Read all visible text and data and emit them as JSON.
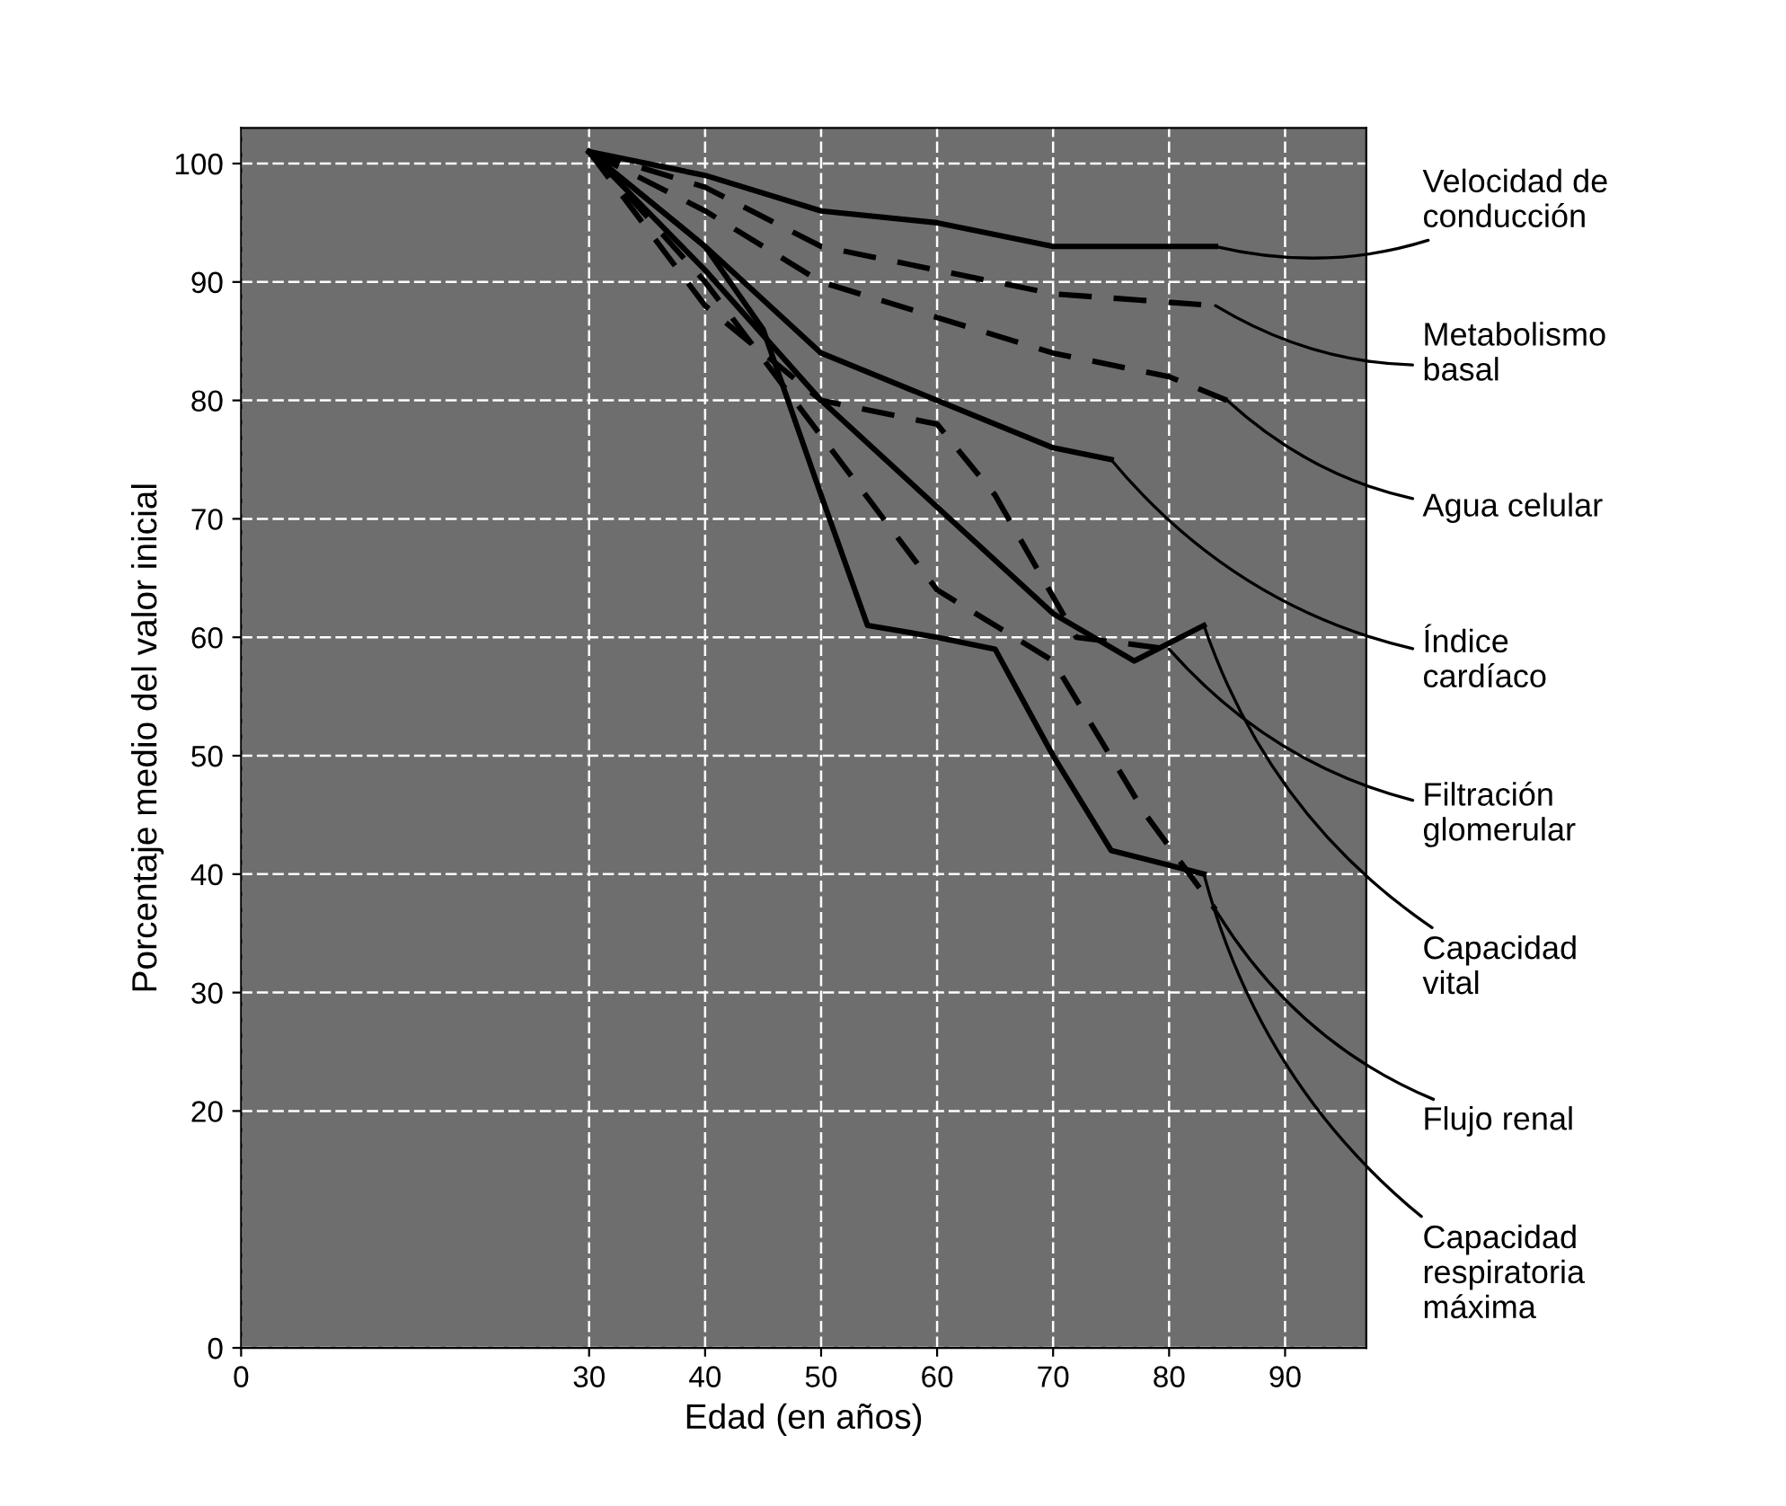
{
  "chart_data": {
    "type": "line",
    "xlabel": "Edad (en años)",
    "ylabel": "Porcentaje medio del valor inicial",
    "xlim": [
      0,
      97
    ],
    "ylim": [
      0,
      103
    ],
    "xticks": [
      0,
      30,
      40,
      50,
      60,
      70,
      80,
      90
    ],
    "yticks": [
      0,
      20,
      30,
      40,
      50,
      60,
      70,
      80,
      90,
      100
    ],
    "grid": true,
    "legend": false,
    "marker": "none",
    "series": [
      {
        "name": "Velocidad de\nconducción",
        "color": "#000000",
        "line_style": "solid",
        "x": [
          30,
          40,
          50,
          60,
          70,
          84
        ],
        "values": [
          101,
          99,
          96,
          95,
          93,
          93
        ]
      },
      {
        "name": "Metabolismo\nbasal",
        "color": "#000000",
        "line_style": "dashed",
        "x": [
          30,
          40,
          50,
          60,
          70,
          84
        ],
        "values": [
          101,
          98,
          93,
          91,
          89,
          88
        ]
      },
      {
        "name": "Agua celular",
        "color": "#000000",
        "line_style": "dashed",
        "x": [
          30,
          40,
          50,
          60,
          70,
          80,
          85
        ],
        "values": [
          101,
          96,
          90,
          87,
          84,
          82,
          80
        ]
      },
      {
        "name": "Índice\ncardíaco",
        "color": "#000000",
        "line_style": "solid",
        "x": [
          30,
          40,
          50,
          60,
          70,
          75
        ],
        "values": [
          101,
          93,
          84,
          80,
          76,
          75
        ]
      },
      {
        "name": "Filtración\nglomerular",
        "color": "#000000",
        "line_style": "dashed",
        "x": [
          30,
          40,
          50,
          60,
          65,
          72,
          80
        ],
        "values": [
          101,
          88,
          80,
          78,
          72,
          60,
          59
        ]
      },
      {
        "name": "Capacidad\nvital",
        "color": "#000000",
        "line_style": "solid",
        "x": [
          30,
          40,
          50,
          60,
          70,
          77,
          83
        ],
        "values": [
          101,
          91,
          80,
          71,
          62,
          58,
          61
        ]
      },
      {
        "name": "Flujo renal",
        "color": "#000000",
        "line_style": "dashed",
        "x": [
          30,
          40,
          50,
          60,
          70,
          78,
          84
        ],
        "values": [
          101,
          90,
          77,
          64,
          58,
          45,
          37
        ]
      },
      {
        "name": "Capacidad\nrespiratoria\nmáxima",
        "color": "#000000",
        "line_style": "solid",
        "x": [
          30,
          40,
          45,
          50,
          54,
          60,
          65,
          70,
          75,
          83
        ],
        "values": [
          101,
          93,
          86,
          72,
          61,
          60,
          59,
          50,
          42,
          40
        ]
      }
    ]
  }
}
